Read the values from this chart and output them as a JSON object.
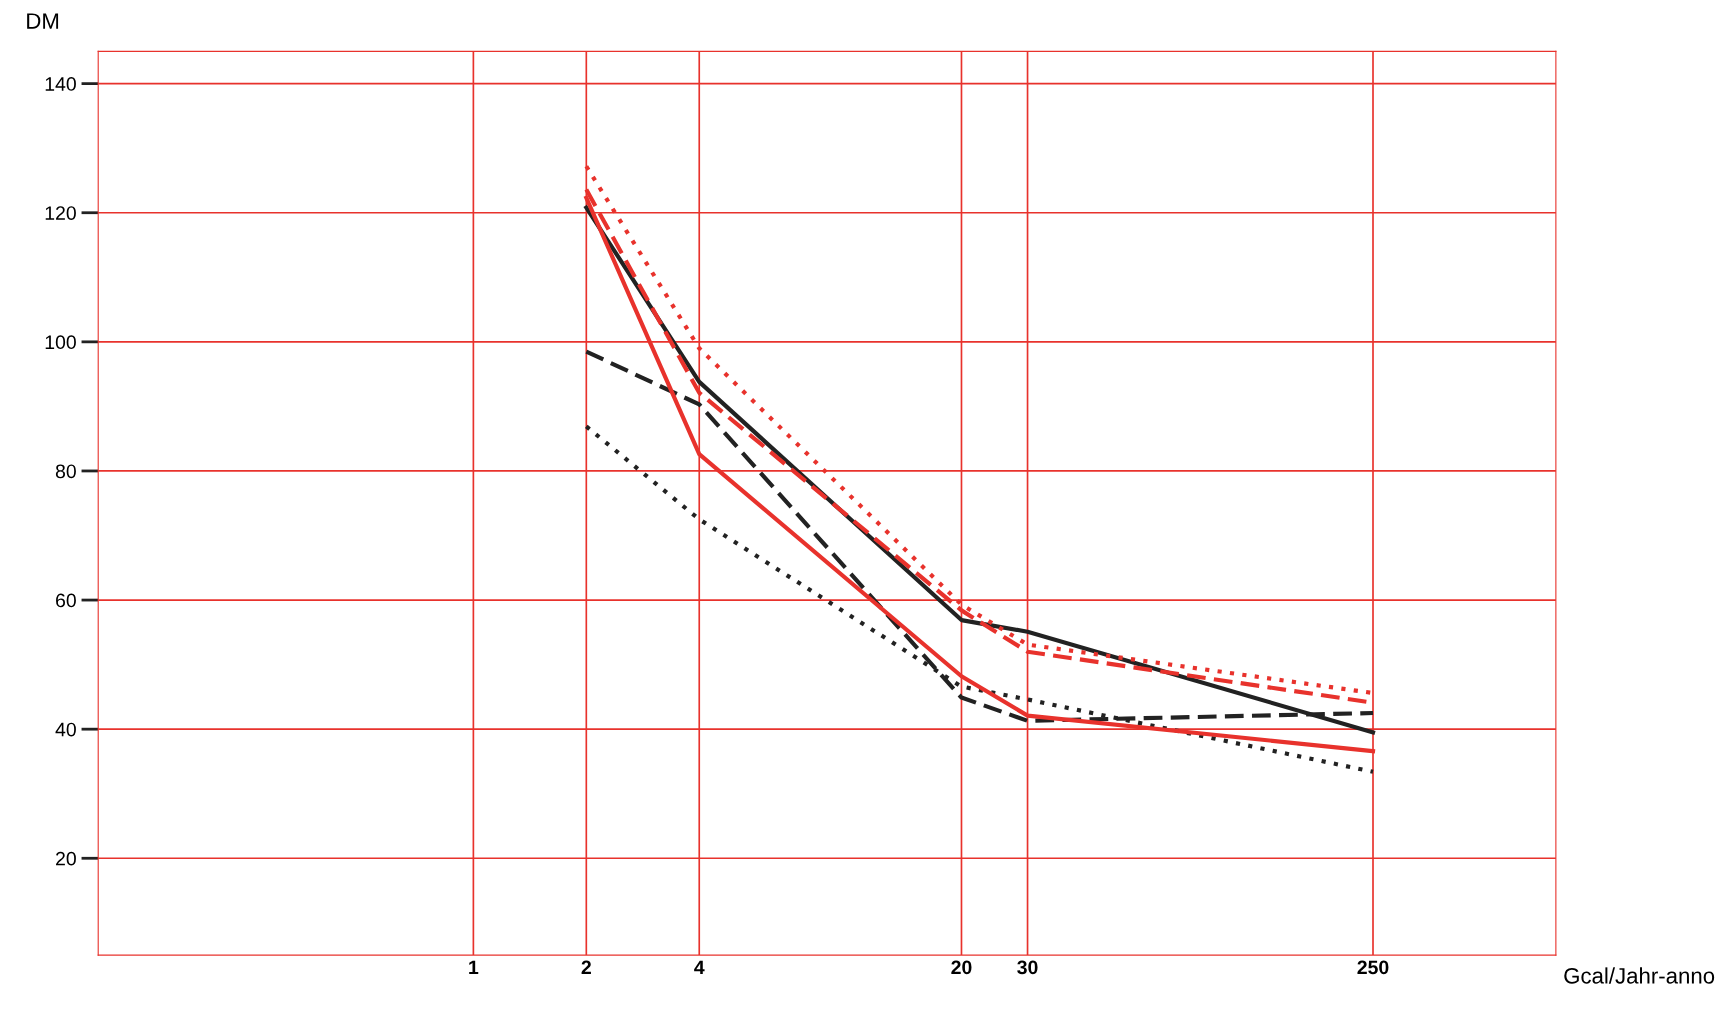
{
  "chart_data": {
    "type": "line",
    "xlabel": "Gcal/Jahr-anno",
    "ylabel": "DM",
    "log": "x",
    "x": [
      2,
      4,
      20,
      30,
      250
    ],
    "xlim": [
      0.1,
      768
    ],
    "ylim": [
      5,
      145
    ],
    "xticks": [
      1,
      2,
      4,
      20,
      30,
      250
    ],
    "yticks": [
      20,
      40,
      60,
      80,
      100,
      120,
      140
    ],
    "grid": true,
    "marker": "none",
    "series": [
      {
        "color": "#222222",
        "line_style": "solid",
        "values": [
          120.8,
          93.8,
          56.9,
          55.1,
          39.5
        ]
      },
      {
        "color": "#222222",
        "line_style": "dashed",
        "values": [
          98.5,
          90.3,
          44.9,
          41.3,
          42.5
        ]
      },
      {
        "color": "#222222",
        "line_style": "dotted",
        "values": [
          86.9,
          72.5,
          46.6,
          44.6,
          33.4
        ]
      },
      {
        "color": "#e8322c",
        "line_style": "solid",
        "values": [
          122.3,
          82.6,
          48.2,
          42.1,
          36.6
        ]
      },
      {
        "color": "#e8322c",
        "line_style": "dashed",
        "values": [
          123.6,
          92.1,
          58.4,
          52.0,
          44.1
        ]
      },
      {
        "color": "#e8322c",
        "line_style": "dotted",
        "values": [
          127.2,
          99.0,
          59.3,
          53.1,
          45.6
        ]
      }
    ]
  }
}
